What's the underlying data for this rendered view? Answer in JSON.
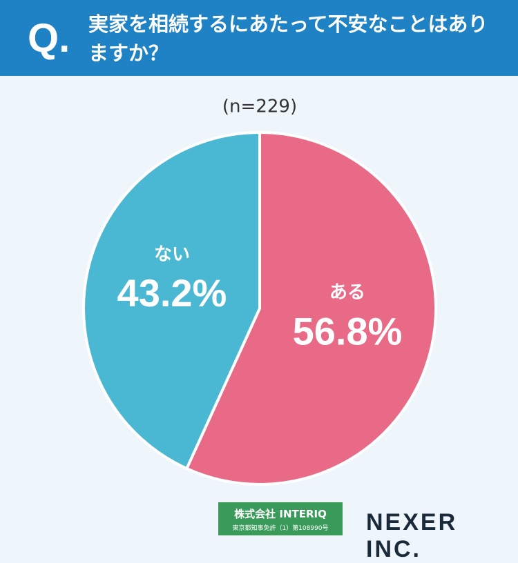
{
  "header": {
    "marker": "Q.",
    "title": "実家を相続するにあたって不安なことはありますか？"
  },
  "chart_data": {
    "type": "pie",
    "subtitle": "(n=229)",
    "categories": [
      "ある",
      "ない"
    ],
    "values": [
      56.8,
      43.2
    ],
    "value_labels": [
      "56.8%",
      "43.2%"
    ],
    "colors": [
      "#e96a86",
      "#4bb8d3"
    ]
  },
  "footer": {
    "company": "株式会社 INTERIQ",
    "license": "東京都知事免許（1）第108990号",
    "brand": "NEXER INC."
  }
}
